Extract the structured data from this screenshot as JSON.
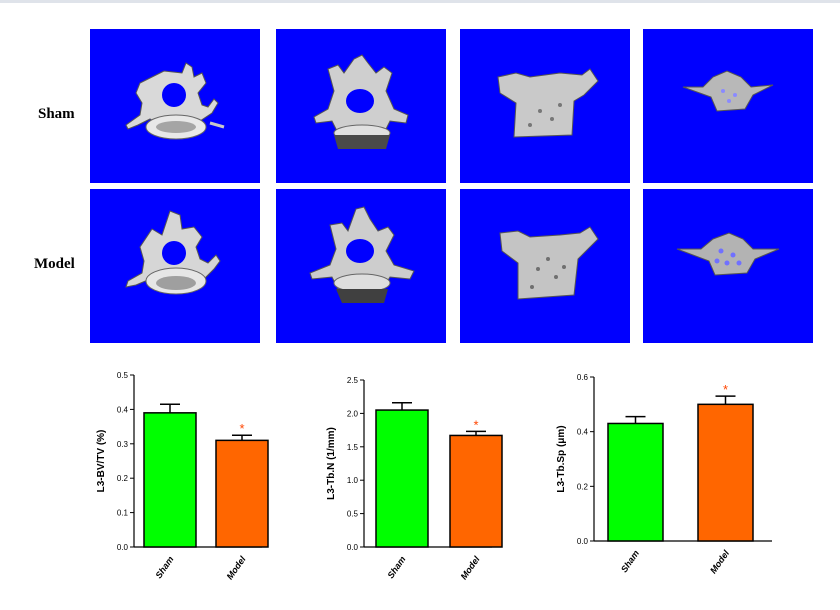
{
  "row_labels": [
    "Sham",
    "Model"
  ],
  "panel_background": "#0000ff",
  "image_panels": [
    {
      "row": "Sham",
      "view": "axial-vertebra"
    },
    {
      "row": "Sham",
      "view": "oblique-vertebra"
    },
    {
      "row": "Sham",
      "view": "lateral-body"
    },
    {
      "row": "Sham",
      "view": "trabecular-section"
    },
    {
      "row": "Model",
      "view": "axial-vertebra"
    },
    {
      "row": "Model",
      "view": "oblique-vertebra"
    },
    {
      "row": "Model",
      "view": "lateral-body"
    },
    {
      "row": "Model",
      "view": "trabecular-section"
    }
  ],
  "chart_data": [
    {
      "type": "bar",
      "categories": [
        "Sham",
        "Model"
      ],
      "values": [
        0.39,
        0.31
      ],
      "errors": [
        0.025,
        0.015
      ],
      "significance": [
        "",
        "*"
      ],
      "colors": [
        "#00ff00",
        "#ff6600"
      ],
      "title": "",
      "xlabel": "",
      "ylabel": "L3-BV/TV (%)",
      "ylim": [
        0,
        0.5
      ],
      "yticks": [
        "0.0",
        "0.1",
        "0.2",
        "0.3",
        "0.4",
        "0.5"
      ]
    },
    {
      "type": "bar",
      "categories": [
        "Sham",
        "Model"
      ],
      "values": [
        2.05,
        1.67
      ],
      "errors": [
        0.11,
        0.06
      ],
      "significance": [
        "",
        "*"
      ],
      "colors": [
        "#00ff00",
        "#ff6600"
      ],
      "title": "",
      "xlabel": "",
      "ylabel": "L3-Tb.N (1/mm)",
      "ylim": [
        0,
        2.5
      ],
      "yticks": [
        "0.0",
        "0.5",
        "1.0",
        "1.5",
        "2.0",
        "2.5"
      ]
    },
    {
      "type": "bar",
      "categories": [
        "Sham",
        "Model"
      ],
      "values": [
        0.43,
        0.5
      ],
      "errors": [
        0.025,
        0.03
      ],
      "significance": [
        "",
        "*"
      ],
      "colors": [
        "#00ff00",
        "#ff6600"
      ],
      "title": "",
      "xlabel": "",
      "ylabel": "L3-Tb.Sp (μm)",
      "ylim": [
        0,
        0.6
      ],
      "yticks": [
        "0.0",
        "0.2",
        "0.4",
        "0.6"
      ]
    }
  ]
}
